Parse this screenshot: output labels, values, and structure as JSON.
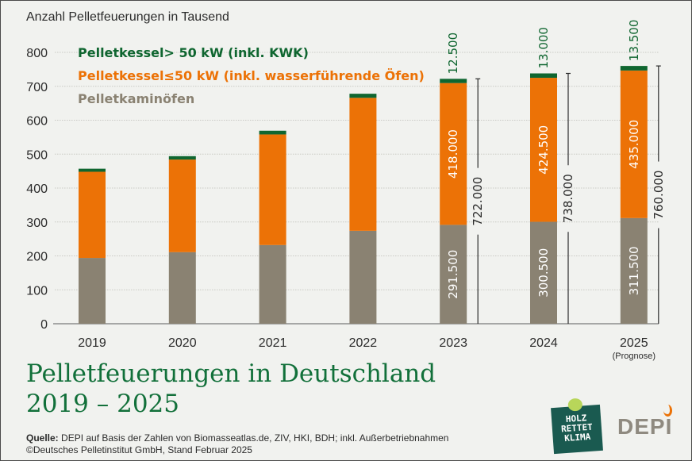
{
  "chart_data": {
    "type": "bar",
    "stacked": true,
    "title": "Pelletfeuerungen in Deutschland 2019 – 2025",
    "ylabel": "Anzahl Pelletfeuerungen in Tausend",
    "xlabel": "",
    "ylim": [
      0,
      800
    ],
    "yticks": [
      0,
      100,
      200,
      300,
      400,
      500,
      600,
      700,
      800
    ],
    "grid": true,
    "legend_position": "top-left",
    "categories": [
      "2019",
      "2020",
      "2021",
      "2022",
      "2023",
      "2024",
      "2025"
    ],
    "category_notes": [
      "",
      "",
      "",
      "",
      "",
      "",
      "(Prognose)"
    ],
    "series": [
      {
        "name": "Pelletkaminöfen",
        "color": "#8a8272",
        "values": [
          194,
          211,
          232,
          274,
          291.5,
          300.5,
          311.5
        ],
        "labels": [
          "",
          "",
          "",
          "",
          "291.500",
          "300.500",
          "311.500"
        ]
      },
      {
        "name": "Pelletkessel ≤ 50 kW (inkl. wasserführende Öfen)",
        "color": "#ec7206",
        "values": [
          254,
          273,
          326,
          392,
          418,
          424.5,
          435
        ],
        "labels": [
          "",
          "",
          "",
          "",
          "418.000",
          "424.500",
          "435.000"
        ]
      },
      {
        "name": "Pelletkessel > 50 kW (inkl. KWK)",
        "color": "#0f6630",
        "values": [
          9,
          10,
          11,
          12,
          12.5,
          13,
          13.5
        ],
        "labels": [
          "",
          "",
          "",
          "",
          "12.500",
          "13.000",
          "13.500"
        ]
      }
    ],
    "totals": [
      null,
      null,
      null,
      null,
      722,
      738,
      760
    ],
    "total_labels": [
      "",
      "",
      "",
      "",
      "722.000",
      "738.000",
      "760.000"
    ]
  },
  "legend": [
    "Pelletkessel> 50 kW (inkl. KWK)",
    "Pelletkessel≤50 kW (inkl. wasserführende Öfen)",
    "Pelletkaminöfen"
  ],
  "footer": {
    "title_line1": "Pelletfeuerungen in Deutschland",
    "title_line2": "2019 – 2025",
    "source_label": "Quelle:",
    "source_text": " DEPI auf Basis der Zahlen von Biomasseatlas.de, ZIV, HKI, BDH; inkl. Außerbetriebnahmen",
    "copyright": "©Deutsches Pelletinstitut GmbH, Stand Februar 2025"
  },
  "logos": {
    "hrk": [
      "HOLZ",
      "RETTET",
      "KLIMA"
    ],
    "depi": "DEPI"
  }
}
